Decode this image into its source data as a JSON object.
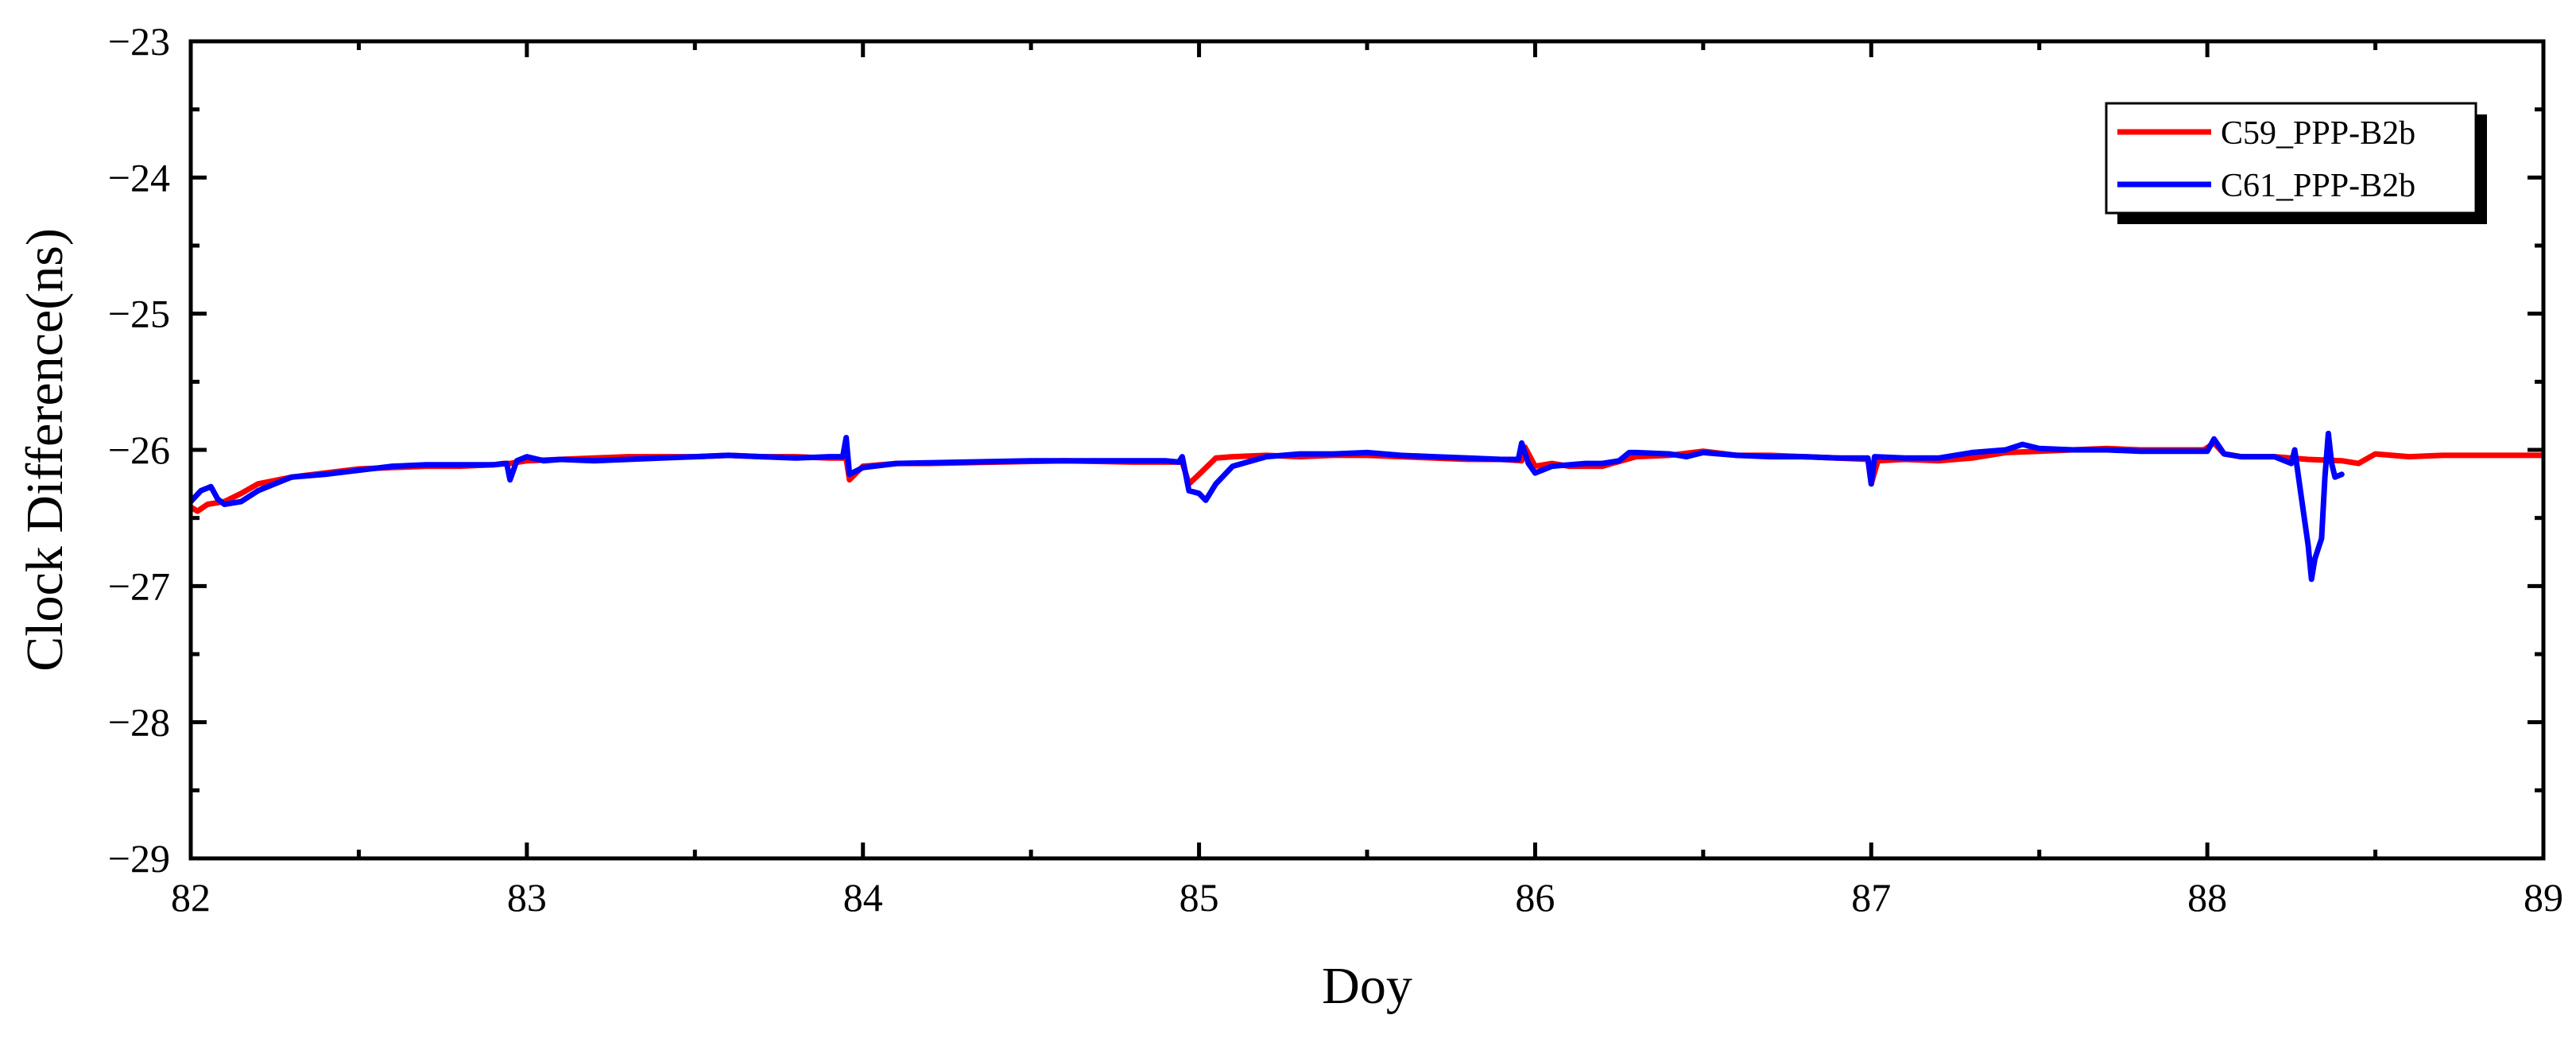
{
  "chart_data": {
    "type": "line",
    "title": "",
    "xlabel": "Doy",
    "ylabel": "Clock Difference(ns)",
    "xlim": [
      82,
      89
    ],
    "ylim": [
      -29,
      -23
    ],
    "xticks": [
      82,
      83,
      84,
      85,
      86,
      87,
      88,
      89
    ],
    "yticks": [
      -29,
      -28,
      -27,
      -26,
      -25,
      -24,
      -23
    ],
    "xtick_labels": [
      "82",
      "83",
      "84",
      "85",
      "86",
      "87",
      "88",
      "89"
    ],
    "ytick_labels": [
      "−29",
      "−28",
      "−27",
      "−26",
      "−25",
      "−24",
      "−23"
    ],
    "grid": false,
    "legend_position": "top-right",
    "series": [
      {
        "name": "C59_PPP-B2b",
        "color": "#ff0000",
        "points": [
          [
            82.0,
            -26.42
          ],
          [
            82.02,
            -26.45
          ],
          [
            82.05,
            -26.4
          ],
          [
            82.1,
            -26.38
          ],
          [
            82.15,
            -26.32
          ],
          [
            82.2,
            -26.25
          ],
          [
            82.3,
            -26.2
          ],
          [
            82.4,
            -26.17
          ],
          [
            82.5,
            -26.14
          ],
          [
            82.6,
            -26.13
          ],
          [
            82.7,
            -26.12
          ],
          [
            82.8,
            -26.12
          ],
          [
            82.9,
            -26.11
          ],
          [
            82.93,
            -26.1
          ],
          [
            82.95,
            -26.1
          ],
          [
            83.0,
            -26.08
          ],
          [
            83.2,
            -26.06
          ],
          [
            83.3,
            -26.05
          ],
          [
            83.4,
            -26.05
          ],
          [
            83.5,
            -26.05
          ],
          [
            83.6,
            -26.04
          ],
          [
            83.7,
            -26.05
          ],
          [
            83.8,
            -26.05
          ],
          [
            83.9,
            -26.06
          ],
          [
            83.95,
            -26.06
          ],
          [
            83.96,
            -26.22
          ],
          [
            84.0,
            -26.12
          ],
          [
            84.1,
            -26.1
          ],
          [
            84.2,
            -26.1
          ],
          [
            84.4,
            -26.09
          ],
          [
            84.6,
            -26.08
          ],
          [
            84.8,
            -26.09
          ],
          [
            84.95,
            -26.09
          ],
          [
            84.97,
            -26.25
          ],
          [
            85.0,
            -26.18
          ],
          [
            85.05,
            -26.06
          ],
          [
            85.1,
            -26.05
          ],
          [
            85.2,
            -26.04
          ],
          [
            85.3,
            -26.05
          ],
          [
            85.4,
            -26.04
          ],
          [
            85.5,
            -26.04
          ],
          [
            85.6,
            -26.05
          ],
          [
            85.7,
            -26.06
          ],
          [
            85.8,
            -26.07
          ],
          [
            85.9,
            -26.07
          ],
          [
            85.96,
            -26.08
          ],
          [
            85.97,
            -25.98
          ],
          [
            86.0,
            -26.12
          ],
          [
            86.05,
            -26.1
          ],
          [
            86.1,
            -26.12
          ],
          [
            86.2,
            -26.12
          ],
          [
            86.3,
            -26.05
          ],
          [
            86.4,
            -26.04
          ],
          [
            86.5,
            -26.01
          ],
          [
            86.6,
            -26.04
          ],
          [
            86.7,
            -26.04
          ],
          [
            86.8,
            -26.05
          ],
          [
            86.9,
            -26.06
          ],
          [
            86.99,
            -26.07
          ],
          [
            87.0,
            -26.25
          ],
          [
            87.02,
            -26.08
          ],
          [
            87.1,
            -26.07
          ],
          [
            87.2,
            -26.08
          ],
          [
            87.3,
            -26.06
          ],
          [
            87.4,
            -26.02
          ],
          [
            87.5,
            -26.01
          ],
          [
            87.6,
            -26.0
          ],
          [
            87.7,
            -25.99
          ],
          [
            87.8,
            -26.0
          ],
          [
            87.9,
            -26.0
          ],
          [
            87.99,
            -26.0
          ],
          [
            88.02,
            -25.95
          ],
          [
            88.05,
            -26.03
          ],
          [
            88.1,
            -26.05
          ],
          [
            88.2,
            -26.05
          ],
          [
            88.3,
            -26.07
          ],
          [
            88.4,
            -26.08
          ],
          [
            88.45,
            -26.1
          ],
          [
            88.5,
            -26.03
          ],
          [
            88.6,
            -26.05
          ],
          [
            88.7,
            -26.04
          ],
          [
            88.8,
            -26.04
          ],
          [
            88.9,
            -26.04
          ],
          [
            89.0,
            -26.04
          ]
        ]
      },
      {
        "name": "C61_PPP-B2b",
        "color": "#0000ff",
        "points": [
          [
            82.0,
            -26.38
          ],
          [
            82.03,
            -26.3
          ],
          [
            82.06,
            -26.27
          ],
          [
            82.08,
            -26.36
          ],
          [
            82.1,
            -26.4
          ],
          [
            82.15,
            -26.38
          ],
          [
            82.2,
            -26.3
          ],
          [
            82.25,
            -26.25
          ],
          [
            82.3,
            -26.2
          ],
          [
            82.4,
            -26.18
          ],
          [
            82.5,
            -26.15
          ],
          [
            82.6,
            -26.12
          ],
          [
            82.7,
            -26.11
          ],
          [
            82.8,
            -26.11
          ],
          [
            82.9,
            -26.11
          ],
          [
            82.94,
            -26.1
          ],
          [
            82.95,
            -26.22
          ],
          [
            82.97,
            -26.08
          ],
          [
            83.0,
            -26.05
          ],
          [
            83.05,
            -26.08
          ],
          [
            83.1,
            -26.07
          ],
          [
            83.2,
            -26.08
          ],
          [
            83.3,
            -26.07
          ],
          [
            83.4,
            -26.06
          ],
          [
            83.5,
            -26.05
          ],
          [
            83.6,
            -26.04
          ],
          [
            83.7,
            -26.05
          ],
          [
            83.8,
            -26.06
          ],
          [
            83.9,
            -26.05
          ],
          [
            83.94,
            -26.05
          ],
          [
            83.95,
            -25.91
          ],
          [
            83.96,
            -26.18
          ],
          [
            84.0,
            -26.13
          ],
          [
            84.1,
            -26.1
          ],
          [
            84.3,
            -26.09
          ],
          [
            84.5,
            -26.08
          ],
          [
            84.7,
            -26.08
          ],
          [
            84.9,
            -26.08
          ],
          [
            84.94,
            -26.09
          ],
          [
            84.95,
            -26.05
          ],
          [
            84.97,
            -26.3
          ],
          [
            85.0,
            -26.32
          ],
          [
            85.02,
            -26.37
          ],
          [
            85.05,
            -26.25
          ],
          [
            85.1,
            -26.12
          ],
          [
            85.2,
            -26.05
          ],
          [
            85.3,
            -26.03
          ],
          [
            85.4,
            -26.03
          ],
          [
            85.5,
            -26.02
          ],
          [
            85.6,
            -26.04
          ],
          [
            85.7,
            -26.05
          ],
          [
            85.8,
            -26.06
          ],
          [
            85.9,
            -26.07
          ],
          [
            85.95,
            -26.07
          ],
          [
            85.96,
            -25.95
          ],
          [
            85.98,
            -26.1
          ],
          [
            86.0,
            -26.17
          ],
          [
            86.05,
            -26.12
          ],
          [
            86.1,
            -26.11
          ],
          [
            86.15,
            -26.1
          ],
          [
            86.2,
            -26.1
          ],
          [
            86.25,
            -26.08
          ],
          [
            86.28,
            -26.02
          ],
          [
            86.3,
            -26.02
          ],
          [
            86.4,
            -26.03
          ],
          [
            86.45,
            -26.05
          ],
          [
            86.5,
            -26.02
          ],
          [
            86.6,
            -26.04
          ],
          [
            86.7,
            -26.05
          ],
          [
            86.8,
            -26.05
          ],
          [
            86.9,
            -26.06
          ],
          [
            86.99,
            -26.06
          ],
          [
            87.0,
            -26.25
          ],
          [
            87.01,
            -26.05
          ],
          [
            87.1,
            -26.06
          ],
          [
            87.2,
            -26.06
          ],
          [
            87.3,
            -26.02
          ],
          [
            87.4,
            -26.0
          ],
          [
            87.45,
            -25.96
          ],
          [
            87.5,
            -25.99
          ],
          [
            87.6,
            -26.0
          ],
          [
            87.7,
            -26.0
          ],
          [
            87.8,
            -26.01
          ],
          [
            87.9,
            -26.01
          ],
          [
            88.0,
            -26.01
          ],
          [
            88.02,
            -25.92
          ],
          [
            88.05,
            -26.03
          ],
          [
            88.1,
            -26.05
          ],
          [
            88.2,
            -26.05
          ],
          [
            88.25,
            -26.1
          ],
          [
            88.26,
            -26.0
          ],
          [
            88.28,
            -26.35
          ],
          [
            88.3,
            -26.7
          ],
          [
            88.31,
            -26.95
          ],
          [
            88.32,
            -26.8
          ],
          [
            88.34,
            -26.65
          ],
          [
            88.35,
            -26.2
          ],
          [
            88.36,
            -25.88
          ],
          [
            88.37,
            -26.1
          ],
          [
            88.38,
            -26.2
          ],
          [
            88.4,
            -26.18
          ]
        ]
      }
    ]
  }
}
